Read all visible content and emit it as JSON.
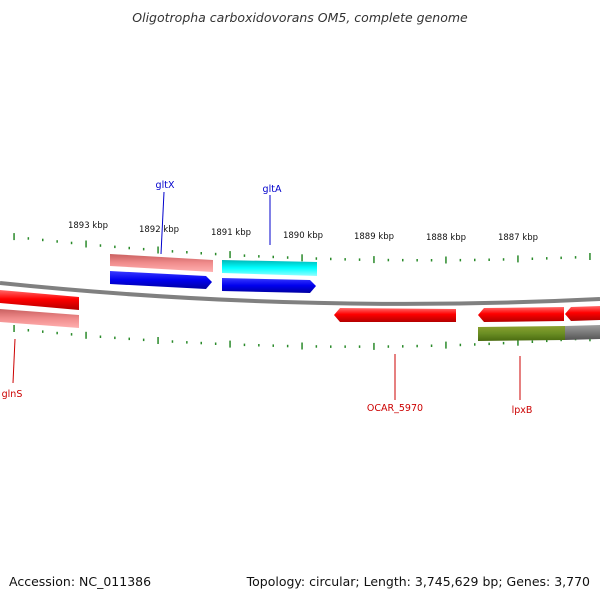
{
  "title": "Oligotropha carboxidovorans OM5, complete genome",
  "footer": {
    "accession": "Accession: NC_011386",
    "topology": "Topology: circular; Length: 3,745,629 bp; Genes: 3,770"
  },
  "colors": {
    "backbone": "#888888",
    "tick": "#2a8a2a",
    "forward_label": "#0000cc",
    "reverse_label": "#cc0000"
  },
  "scale_ticks": [
    {
      "label": "1893 kbp"
    },
    {
      "label": "1892 kbp"
    },
    {
      "label": "1891 kbp"
    },
    {
      "label": "1890 kbp"
    },
    {
      "label": "1889 kbp"
    },
    {
      "label": "1888 kbp"
    },
    {
      "label": "1887 kbp"
    }
  ],
  "gene_labels": {
    "gltX": "gltX",
    "gltA": "gltA",
    "glnS": "glnS",
    "ocar": "OCAR_5970",
    "lpxB": "lpxB"
  }
}
